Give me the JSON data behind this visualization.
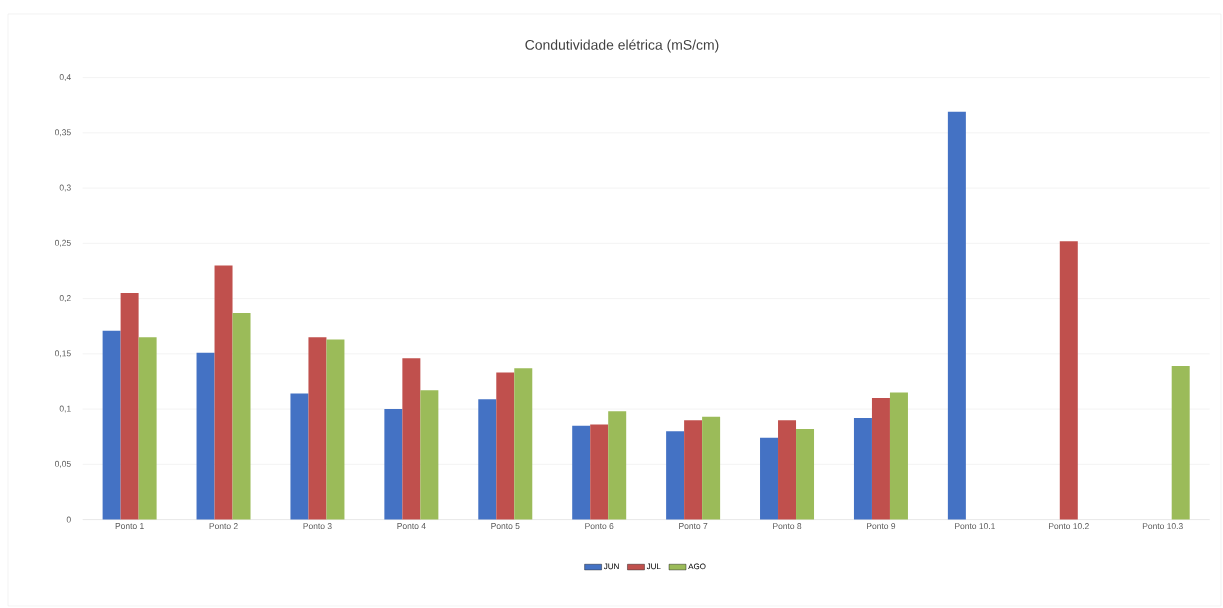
{
  "chart_data": {
    "type": "bar",
    "title": "Condutividade elétrica (mS/cm)",
    "categories": [
      "Ponto 1",
      "Ponto 2",
      "Ponto 3",
      "Ponto 4",
      "Ponto 5",
      "Ponto 6",
      "Ponto 7",
      "Ponto 8",
      "Ponto 9",
      "Ponto 10.1",
      "Ponto 10.2",
      "Ponto 10.3"
    ],
    "series": [
      {
        "name": "JUN",
        "color": "#4472c4",
        "values": [
          0.171,
          0.151,
          0.114,
          0.1,
          0.109,
          0.085,
          0.08,
          0.074,
          0.092,
          0.369,
          null,
          null
        ]
      },
      {
        "name": "JUL",
        "color": "#c0504d",
        "values": [
          0.205,
          0.23,
          0.165,
          0.146,
          0.133,
          0.086,
          0.09,
          0.09,
          0.11,
          null,
          0.252,
          null
        ]
      },
      {
        "name": "AGO",
        "color": "#9bbb59",
        "values": [
          0.165,
          0.187,
          0.163,
          0.117,
          0.137,
          0.098,
          0.093,
          0.082,
          0.115,
          null,
          null,
          0.139
        ]
      }
    ],
    "ylim": [
      0,
      0.4
    ],
    "yticks": [
      0,
      {
        "value": 0.05,
        "label": "0,05"
      },
      {
        "value": 0.1,
        "label": "0,1"
      },
      {
        "value": 0.15,
        "label": "0,15"
      },
      {
        "value": 0.2,
        "label": "0,2"
      },
      {
        "value": 0.25,
        "label": "0,25"
      },
      {
        "value": 0.3,
        "label": "0,3"
      },
      {
        "value": 0.35,
        "label": "0,35"
      },
      {
        "value": 0.4,
        "label": "0,4"
      }
    ],
    "grid": "y",
    "legend": "bottom"
  }
}
